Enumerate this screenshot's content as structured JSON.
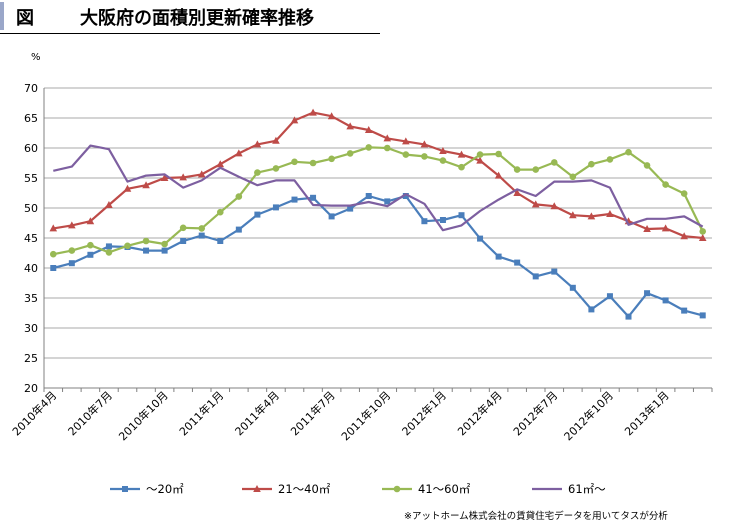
{
  "header": {
    "figure_label": "図",
    "title": "大阪府の面積別更新確率推移"
  },
  "chart_data": {
    "type": "line",
    "ylabel": "%",
    "ylim": [
      20,
      70
    ],
    "yticks": [
      20,
      25,
      30,
      35,
      40,
      45,
      50,
      55,
      60,
      65,
      70
    ],
    "grid": true,
    "legend_position": "bottom",
    "x_tick_labels": [
      "2010年4月",
      "2010年7月",
      "2010年10月",
      "2011年1月",
      "2011年4月",
      "2011年7月",
      "2011年10月",
      "2012年1月",
      "2012年4月",
      "2012年7月",
      "2012年10月",
      "2013年1月"
    ],
    "months": [
      "2010-04",
      "2010-05",
      "2010-06",
      "2010-07",
      "2010-08",
      "2010-09",
      "2010-10",
      "2010-11",
      "2010-12",
      "2011-01",
      "2011-02",
      "2011-03",
      "2011-04",
      "2011-05",
      "2011-06",
      "2011-07",
      "2011-08",
      "2011-09",
      "2011-10",
      "2011-11",
      "2011-12",
      "2012-01",
      "2012-02",
      "2012-03",
      "2012-04",
      "2012-05",
      "2012-06",
      "2012-07",
      "2012-08",
      "2012-09",
      "2012-10",
      "2012-11",
      "2012-12",
      "2013-01",
      "2013-02",
      "2013-03"
    ],
    "series": [
      {
        "name": "～20㎡",
        "color": "#4a7ebb",
        "marker": "square",
        "values": [
          40.0,
          40.8,
          42.2,
          43.6,
          43.5,
          42.9,
          42.9,
          44.5,
          45.4,
          44.5,
          46.4,
          48.9,
          50.1,
          51.4,
          51.7,
          48.6,
          49.9,
          52.0,
          51.1,
          52.0,
          47.8,
          48.0,
          48.8,
          44.9,
          41.9,
          40.9,
          38.6,
          39.4,
          36.7,
          33.1,
          35.3,
          31.9,
          35.8,
          34.6,
          32.9,
          32.1
        ]
      },
      {
        "name": "21～40㎡",
        "color": "#be4b48",
        "marker": "triangle",
        "values": [
          46.6,
          47.1,
          47.8,
          50.5,
          53.2,
          53.8,
          55.0,
          55.1,
          55.6,
          57.3,
          59.1,
          60.6,
          61.2,
          64.6,
          65.9,
          65.3,
          63.6,
          63.0,
          61.6,
          61.1,
          60.6,
          59.5,
          58.9,
          57.9,
          55.4,
          52.5,
          50.6,
          50.3,
          48.8,
          48.6,
          49.0,
          47.8,
          46.5,
          46.6,
          45.3,
          45.0
        ]
      },
      {
        "name": "41～60㎡",
        "color": "#98b954",
        "marker": "circle",
        "values": [
          42.3,
          42.9,
          43.8,
          42.6,
          43.7,
          44.5,
          44.0,
          46.7,
          46.6,
          49.3,
          51.9,
          55.9,
          56.6,
          57.7,
          57.5,
          58.2,
          59.1,
          60.1,
          60.0,
          58.9,
          58.6,
          57.9,
          56.8,
          58.9,
          59.0,
          56.4,
          56.4,
          57.6,
          55.2,
          57.3,
          58.1,
          59.3,
          57.1,
          53.9,
          52.4,
          46.1
        ]
      },
      {
        "name": "61㎡～",
        "color": "#7d5fa0",
        "marker": "none",
        "values": [
          56.2,
          56.9,
          60.4,
          59.8,
          54.4,
          55.4,
          55.6,
          53.4,
          54.6,
          56.7,
          55.2,
          53.8,
          54.6,
          54.6,
          50.5,
          50.4,
          50.4,
          51.0,
          50.3,
          52.3,
          50.7,
          46.3,
          47.1,
          49.5,
          51.4,
          53.1,
          52.0,
          54.4,
          54.4,
          54.6,
          53.4,
          47.2,
          48.2,
          48.2,
          48.6,
          46.9
        ]
      }
    ]
  },
  "footnote": "※アットホーム株式会社の賃貸住宅データを用いてタスが分析"
}
